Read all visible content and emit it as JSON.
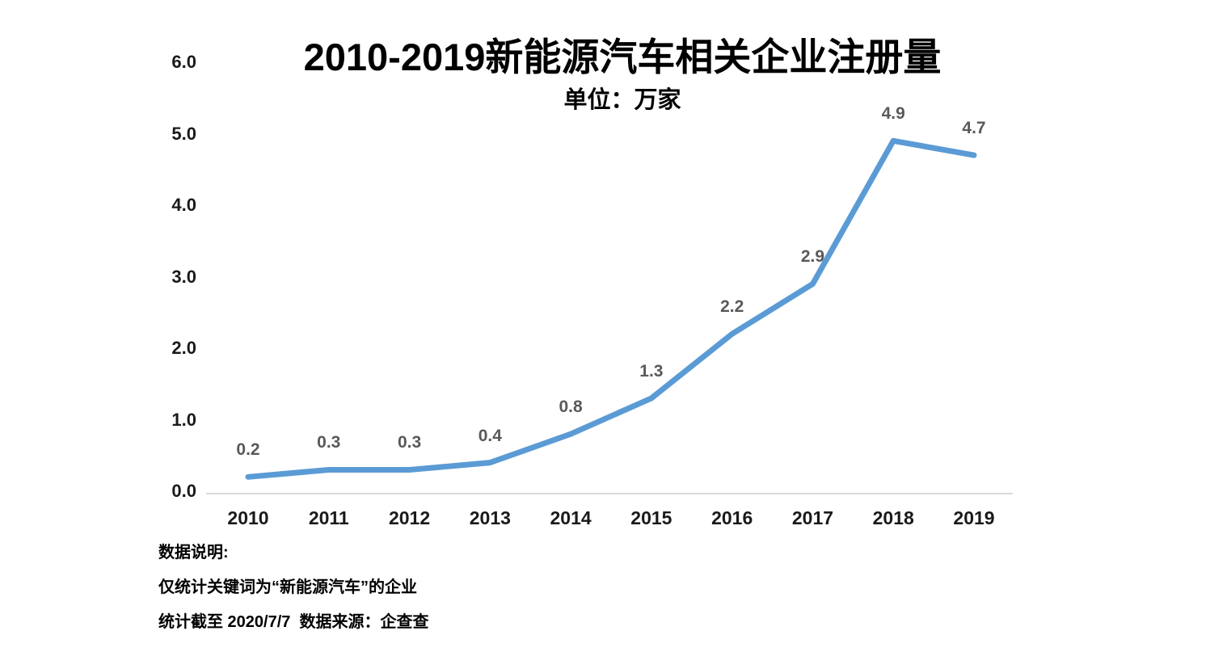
{
  "chart_data": {
    "type": "line",
    "title": "2010-2019新能源汽车相关企业注册量",
    "subtitle": "单位：万家",
    "categories": [
      "2010",
      "2011",
      "2012",
      "2013",
      "2014",
      "2015",
      "2016",
      "2017",
      "2018",
      "2019"
    ],
    "series": [
      {
        "name": "新能源汽车相关企业注册量",
        "values": [
          0.2,
          0.3,
          0.3,
          0.4,
          0.8,
          1.3,
          2.2,
          2.9,
          4.9,
          4.7
        ]
      }
    ],
    "data_labels": [
      "0.2",
      "0.3",
      "0.3",
      "0.4",
      "0.8",
      "1.3",
      "2.2",
      "2.9",
      "4.9",
      "4.7"
    ],
    "xlabel": "",
    "ylabel": "",
    "ylim": [
      0,
      6
    ],
    "y_ticks": [
      "0.0",
      "1.0",
      "2.0",
      "3.0",
      "4.0",
      "5.0",
      "6.0"
    ],
    "grid": false,
    "legend_position": "none",
    "line_color": "#5B9BD5",
    "data_label_color": "#595959",
    "axis_line_color": "#D9D9D9",
    "tick_label_color": "#1A1A1A"
  },
  "footnotes": {
    "line1": "数据说明:",
    "line2": "仅统计关键词为“新能源汽车”的企业",
    "line3": "统计截至 2020/7/7  数据来源：企查查"
  }
}
